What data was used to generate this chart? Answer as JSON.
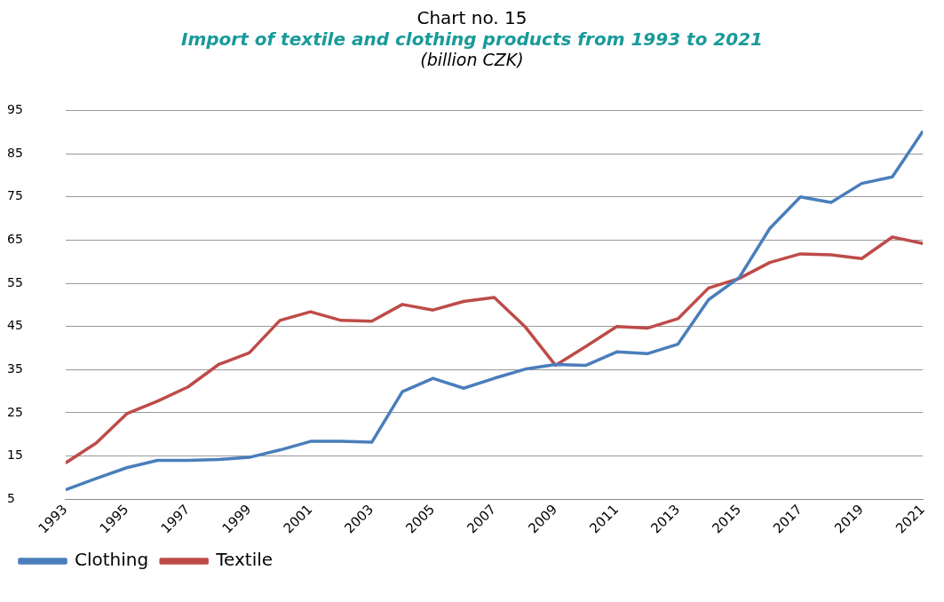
{
  "chart_data": {
    "type": "line",
    "title": "Chart no. 15",
    "subtitle": "Import of textile and clothing products from 1993 to 2021",
    "annotations": [
      "(billion CZK)"
    ],
    "x": [
      1993,
      1994,
      1995,
      1996,
      1997,
      1998,
      1999,
      2000,
      2001,
      2002,
      2003,
      2004,
      2005,
      2006,
      2007,
      2008,
      2009,
      2010,
      2011,
      2012,
      2013,
      2014,
      2015,
      2016,
      2017,
      2018,
      2019,
      2020,
      2021
    ],
    "series": [
      {
        "name": "Clothing",
        "color": "#4a7ebb",
        "values": [
          7.2,
          9.8,
          12.3,
          14,
          14,
          14.2,
          14.7,
          16.4,
          18.4,
          18.4,
          18.2,
          29.9,
          33,
          30.7,
          33,
          35.1,
          36.2,
          36,
          39.1,
          38.7,
          40.9,
          51.2,
          56.3,
          67.7,
          75,
          73.7,
          78.1,
          79.6,
          90.2
        ]
      },
      {
        "name": "Textile",
        "color": "#be4b48",
        "values": [
          13.4,
          18,
          24.8,
          27.7,
          31,
          36.2,
          38.9,
          46.4,
          48.4,
          46.4,
          46.2,
          50.1,
          48.8,
          50.8,
          51.7,
          45,
          36,
          40.4,
          45,
          44.6,
          46.8,
          53.9,
          56.1,
          59.8,
          61.8,
          61.6,
          60.7,
          65.7,
          64.2
        ]
      }
    ],
    "xlim": [
      1993,
      2021
    ],
    "xticks": [
      1993,
      1995,
      1997,
      1999,
      2001,
      2003,
      2005,
      2007,
      2009,
      2011,
      2013,
      2015,
      2017,
      2019,
      2021
    ],
    "ylim": [
      5,
      95
    ],
    "yticks": [
      5,
      15,
      25,
      35,
      45,
      55,
      65,
      75,
      85,
      95
    ],
    "grid": "y",
    "legend": "bottom left",
    "marker": "none",
    "line_style": "solid"
  }
}
